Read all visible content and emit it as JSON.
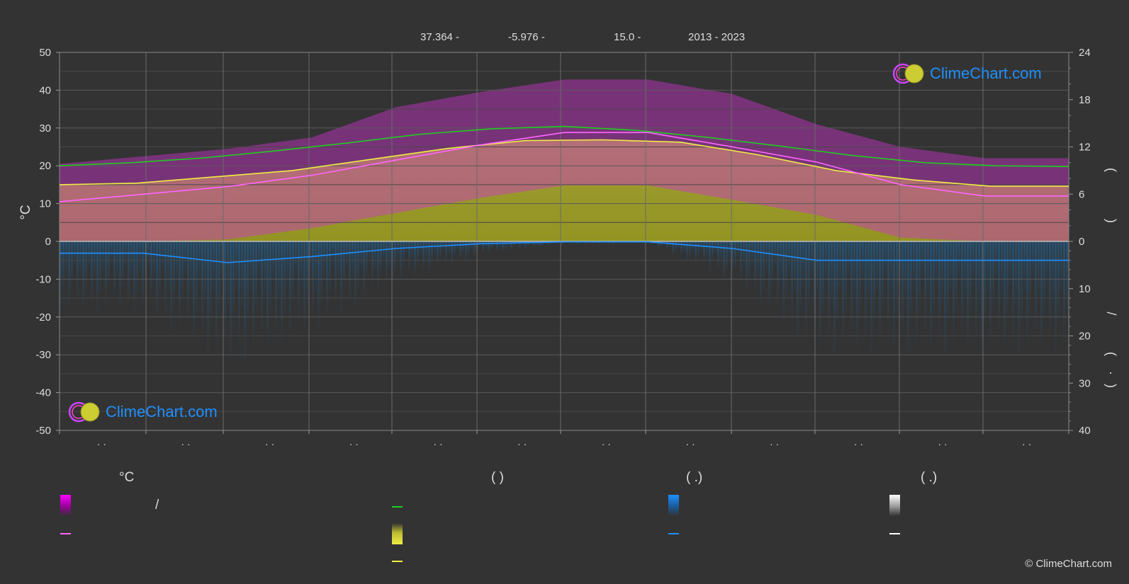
{
  "header": {
    "lat": "37.364 -",
    "lon": "-5.976 -",
    "elev": "15.0 -",
    "years": "2013 - 2023"
  },
  "logo_text": "ClimeChart.com",
  "copyright": "© ClimeChart.com",
  "legend": {
    "col1_head": "°C",
    "col1_slash": "/",
    "col2_head": "(            )",
    "col3_head": "(    .)",
    "col4_head": "(    .)"
  },
  "colors": {
    "background": "#333333",
    "daylight": "#22cc22",
    "sunshine": "#eeee44",
    "max_temp": "#ff66ff",
    "temp_band": "#ff00ff",
    "precip": "#1e90ff",
    "snow": "#ffffff"
  },
  "chart_data": {
    "type": "line",
    "y_left": {
      "label": "°C",
      "range": [
        -50,
        50
      ],
      "ticks": [
        "50",
        "40",
        "30",
        "20",
        "10",
        "0",
        "-10",
        "-20",
        "-30",
        "-40",
        "-50"
      ]
    },
    "y_right_top": {
      "range": [
        0,
        24
      ],
      "ticks": [
        "24",
        "18",
        "12",
        "6",
        "0"
      ]
    },
    "y_right_bottom": {
      "range": [
        0,
        40
      ],
      "ticks": [
        "10",
        "20",
        "30",
        "40"
      ]
    },
    "right_axis_glyphs": [
      "(",
      ")",
      "/",
      "(",
      "·",
      ")"
    ],
    "x_tick_labels": [
      "· ·",
      "· ·",
      "· ·",
      "· ·",
      "· ·",
      "· ·",
      "· ·",
      "· ·",
      "· ·",
      "· ·",
      "· ·",
      "· ·"
    ],
    "months": 12,
    "grid": true,
    "series": [
      {
        "key": "daylight",
        "axis": "hours",
        "values": [
          9.6,
          10.0,
          10.6,
          11.5,
          12.5,
          13.6,
          14.3,
          14.6,
          14.1,
          13.2,
          12.1,
          10.9,
          10.0,
          9.6,
          9.5
        ]
      },
      {
        "key": "sunshine",
        "axis": "hours",
        "values": [
          7.2,
          7.4,
          8.2,
          9.0,
          10.4,
          11.8,
          12.8,
          12.9,
          12.6,
          11.0,
          9.0,
          7.8,
          7.0,
          7.0
        ]
      },
      {
        "key": "max_temp_avg",
        "axis": "celsius",
        "values": [
          10.5,
          12.5,
          14.5,
          17.5,
          21.5,
          25.5,
          28.8,
          28.8,
          25.0,
          21.0,
          15.0,
          12.0,
          12.0
        ]
      },
      {
        "key": "precip_avg",
        "axis": "precip",
        "values": [
          2.5,
          2.5,
          4.5,
          3.2,
          1.5,
          0.5,
          0.1,
          0.1,
          1.5,
          4.0,
          4.0,
          4.0,
          4.0
        ]
      }
    ]
  }
}
